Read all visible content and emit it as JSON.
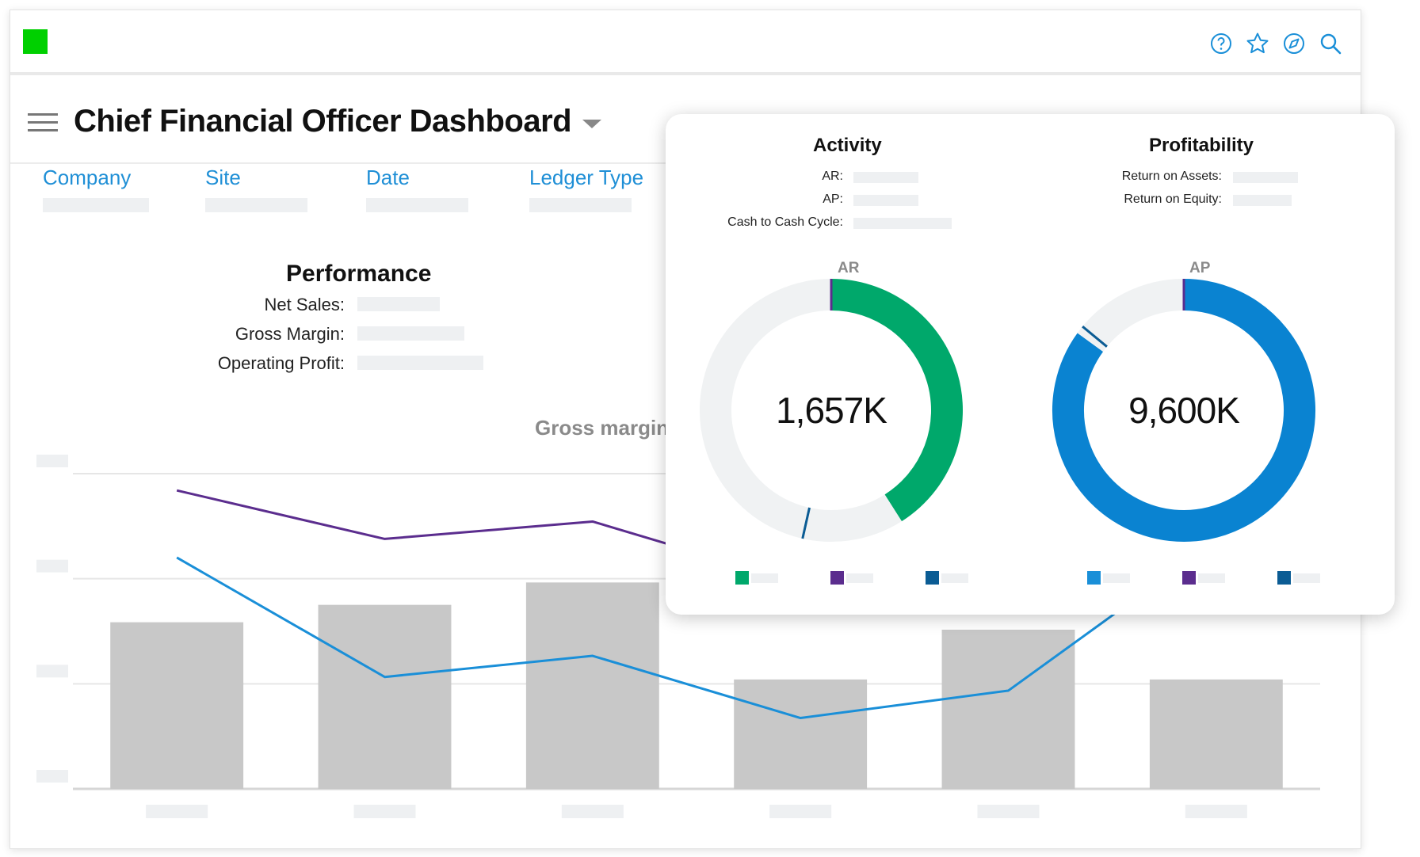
{
  "app": {
    "title": "Chief Financial Officer Dashboard",
    "brand_color": "#00d000",
    "toolbar_icons": [
      "help-icon",
      "star-icon",
      "compass-icon",
      "search-icon"
    ]
  },
  "filters": [
    {
      "label": "Company"
    },
    {
      "label": "Site"
    },
    {
      "label": "Date"
    },
    {
      "label": "Ledger Type"
    }
  ],
  "performance": {
    "title": "Performance",
    "metrics": [
      {
        "label": "Net Sales:"
      },
      {
        "label": "Gross Margin:"
      },
      {
        "label": "Operating Profit:"
      }
    ]
  },
  "main_chart": {
    "title": "Gross margin"
  },
  "popup": {
    "activity": {
      "title": "Activity",
      "items": [
        {
          "label": "AR:"
        },
        {
          "label": "AP:"
        },
        {
          "label": "Cash to Cash Cycle:"
        }
      ]
    },
    "profitability": {
      "title": "Profitability",
      "items": [
        {
          "label": "Return on Assets:"
        },
        {
          "label": "Return on Equity:"
        }
      ]
    },
    "donuts": [
      {
        "title": "AR",
        "center_value": "1,657K",
        "fractions": [
          0.41,
          0.59
        ],
        "colors": [
          "#00a86b",
          "#f0f2f3"
        ],
        "legend_colors": [
          "#00a86b",
          "#5b2d8e",
          "#0b5c94"
        ]
      },
      {
        "title": "AP",
        "center_value": "9,600K",
        "fractions": [
          0.85,
          0.15
        ],
        "colors": [
          "#0a83d1",
          "#f0f2f3"
        ],
        "legend_colors": [
          "#1a8fd8",
          "#5b2d8e",
          "#0b5c94"
        ]
      }
    ]
  },
  "chart_data": {
    "type": "bar",
    "title": "Gross margin",
    "categories": [
      "",
      "",
      "",
      "",
      "",
      ""
    ],
    "series": [
      {
        "type": "bar",
        "values": [
          134,
          148,
          166,
          88,
          128,
          88
        ],
        "color": "#c8c8c8"
      },
      {
        "type": "line",
        "values": [
          240,
          201,
          215,
          165,
          210,
          250
        ],
        "color": "#5b2d8e"
      },
      {
        "type": "line",
        "values": [
          186,
          90,
          107,
          57,
          79,
          200
        ],
        "color": "#1a8fd8"
      }
    ],
    "ylim": [
      0,
      300
    ],
    "grid": true
  }
}
